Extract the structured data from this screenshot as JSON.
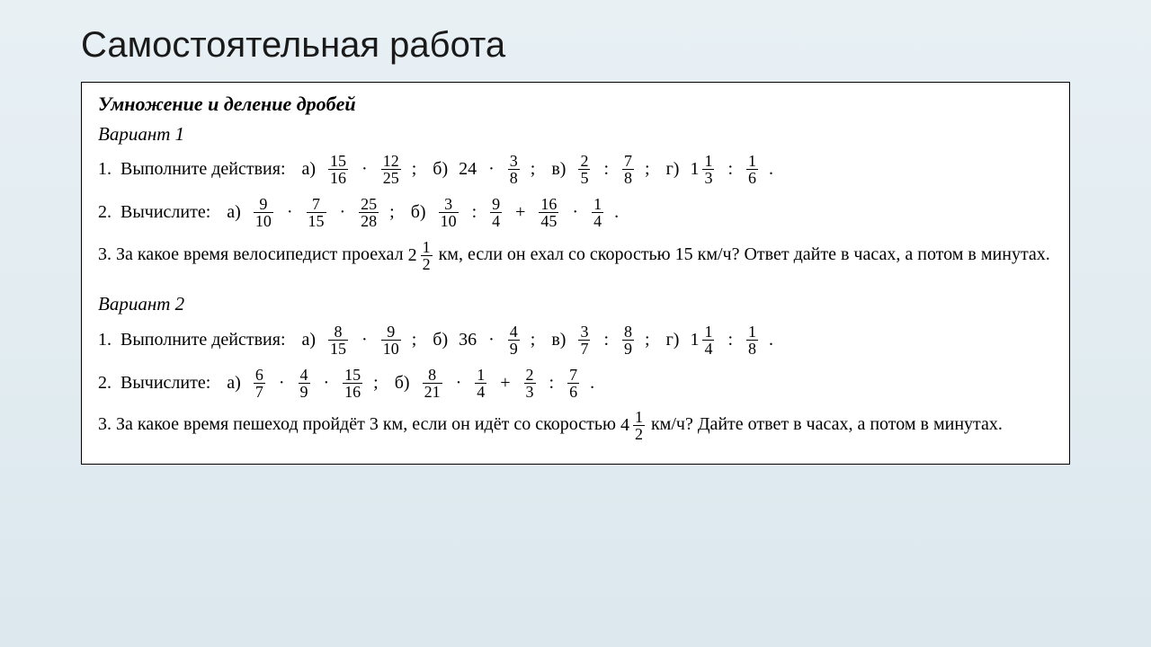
{
  "page": {
    "title": "Самостоятельная работа",
    "background_gradient": [
      "#e8f0f4",
      "#dce8ee"
    ],
    "worksheet_bg": "#ffffff",
    "border_color": "#000000"
  },
  "worksheet": {
    "title": "Умножение и деление дробей",
    "variants": [
      {
        "label": "Вариант 1",
        "tasks": [
          {
            "num": "1.",
            "lead": "Выполните действия:",
            "parts": [
              {
                "label": "а)",
                "type": "expr",
                "items": [
                  {
                    "frac": [
                      15,
                      16
                    ]
                  },
                  {
                    "op": "·"
                  },
                  {
                    "frac": [
                      12,
                      25
                    ]
                  }
                ],
                "suffix": ";"
              },
              {
                "label": "б)",
                "type": "expr",
                "items": [
                  {
                    "int": 24
                  },
                  {
                    "op": "·"
                  },
                  {
                    "frac": [
                      3,
                      8
                    ]
                  }
                ],
                "suffix": ";"
              },
              {
                "label": "в)",
                "type": "expr",
                "items": [
                  {
                    "frac": [
                      2,
                      5
                    ]
                  },
                  {
                    "op": ":"
                  },
                  {
                    "frac": [
                      7,
                      8
                    ]
                  }
                ],
                "suffix": ";"
              },
              {
                "label": "г)",
                "type": "expr",
                "items": [
                  {
                    "mixed": [
                      1,
                      1,
                      3
                    ]
                  },
                  {
                    "op": ":"
                  },
                  {
                    "frac": [
                      1,
                      6
                    ]
                  }
                ],
                "suffix": "."
              }
            ]
          },
          {
            "num": "2.",
            "lead": "Вычислите:",
            "parts": [
              {
                "label": "а)",
                "type": "expr",
                "items": [
                  {
                    "frac": [
                      9,
                      10
                    ]
                  },
                  {
                    "op": "·"
                  },
                  {
                    "frac": [
                      7,
                      15
                    ]
                  },
                  {
                    "op": "·"
                  },
                  {
                    "frac": [
                      25,
                      28
                    ]
                  }
                ],
                "suffix": ";"
              },
              {
                "label": "б)",
                "type": "expr",
                "items": [
                  {
                    "frac": [
                      3,
                      10
                    ]
                  },
                  {
                    "op": ":"
                  },
                  {
                    "frac": [
                      9,
                      4
                    ]
                  },
                  {
                    "op": "+"
                  },
                  {
                    "frac": [
                      16,
                      45
                    ]
                  },
                  {
                    "op": "·"
                  },
                  {
                    "frac": [
                      1,
                      4
                    ]
                  }
                ],
                "suffix": "."
              }
            ]
          },
          {
            "num": "3.",
            "type": "word",
            "text_before": "За какое время велосипедист проехал ",
            "mixed": [
              2,
              1,
              2
            ],
            "text_after": " км, если он ехал со скоростью 15 км/ч? Ответ дайте в часах, а потом в минутах."
          }
        ]
      },
      {
        "label": "Вариант 2",
        "tasks": [
          {
            "num": "1.",
            "lead": "Выполните действия:",
            "parts": [
              {
                "label": "а)",
                "type": "expr",
                "items": [
                  {
                    "frac": [
                      8,
                      15
                    ]
                  },
                  {
                    "op": "·"
                  },
                  {
                    "frac": [
                      9,
                      10
                    ]
                  }
                ],
                "suffix": ";"
              },
              {
                "label": "б)",
                "type": "expr",
                "items": [
                  {
                    "int": 36
                  },
                  {
                    "op": "·"
                  },
                  {
                    "frac": [
                      4,
                      9
                    ]
                  }
                ],
                "suffix": ";"
              },
              {
                "label": "в)",
                "type": "expr",
                "items": [
                  {
                    "frac": [
                      3,
                      7
                    ]
                  },
                  {
                    "op": ":"
                  },
                  {
                    "frac": [
                      8,
                      9
                    ]
                  }
                ],
                "suffix": ";"
              },
              {
                "label": "г)",
                "type": "expr",
                "items": [
                  {
                    "mixed": [
                      1,
                      1,
                      4
                    ]
                  },
                  {
                    "op": ":"
                  },
                  {
                    "frac": [
                      1,
                      8
                    ]
                  }
                ],
                "suffix": "."
              }
            ]
          },
          {
            "num": "2.",
            "lead": "Вычислите:",
            "parts": [
              {
                "label": "а)",
                "type": "expr",
                "items": [
                  {
                    "frac": [
                      6,
                      7
                    ]
                  },
                  {
                    "op": "·"
                  },
                  {
                    "frac": [
                      4,
                      9
                    ]
                  },
                  {
                    "op": "·"
                  },
                  {
                    "frac": [
                      15,
                      16
                    ]
                  }
                ],
                "suffix": ";"
              },
              {
                "label": "б)",
                "type": "expr",
                "items": [
                  {
                    "frac": [
                      8,
                      21
                    ]
                  },
                  {
                    "op": "·"
                  },
                  {
                    "frac": [
                      1,
                      4
                    ]
                  },
                  {
                    "op": "+"
                  },
                  {
                    "frac": [
                      2,
                      3
                    ]
                  },
                  {
                    "op": ":"
                  },
                  {
                    "frac": [
                      7,
                      6
                    ]
                  }
                ],
                "suffix": "."
              }
            ]
          },
          {
            "num": "3.",
            "type": "word",
            "text_before": "За какое время пешеход пройдёт 3 км, если он идёт со скоростью ",
            "mixed": [
              4,
              1,
              2
            ],
            "text_after": " км/ч? Дайте ответ в часах, а потом в минутах."
          }
        ]
      }
    ]
  },
  "style": {
    "title_font": "Arial",
    "title_fontsize": 40,
    "body_font": "Times New Roman",
    "body_fontsize": 20,
    "ws_title_fontsize": 22,
    "frac_fontsize": 18
  }
}
